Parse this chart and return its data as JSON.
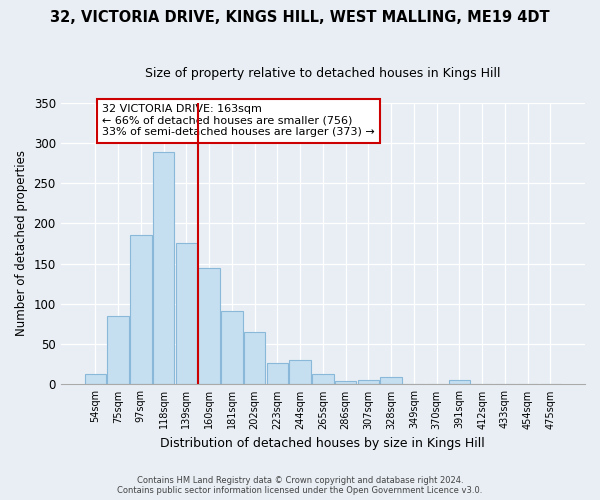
{
  "title": "32, VICTORIA DRIVE, KINGS HILL, WEST MALLING, ME19 4DT",
  "subtitle": "Size of property relative to detached houses in Kings Hill",
  "xlabel": "Distribution of detached houses by size in Kings Hill",
  "ylabel": "Number of detached properties",
  "bar_labels": [
    "54sqm",
    "75sqm",
    "97sqm",
    "118sqm",
    "139sqm",
    "160sqm",
    "181sqm",
    "202sqm",
    "223sqm",
    "244sqm",
    "265sqm",
    "286sqm",
    "307sqm",
    "328sqm",
    "349sqm",
    "370sqm",
    "391sqm",
    "412sqm",
    "433sqm",
    "454sqm",
    "475sqm"
  ],
  "bar_values": [
    13,
    85,
    185,
    289,
    175,
    145,
    91,
    65,
    27,
    30,
    13,
    4,
    6,
    9,
    0,
    0,
    5,
    0,
    0,
    0,
    0
  ],
  "bar_color": "#c5dff0",
  "bar_edge_color": "#8ab8d8",
  "vline_x": 4.5,
  "vline_color": "#cc0000",
  "annotation_title": "32 VICTORIA DRIVE: 163sqm",
  "annotation_line1": "← 66% of detached houses are smaller (756)",
  "annotation_line2": "33% of semi-detached houses are larger (373) →",
  "annotation_box_color": "#ffffff",
  "annotation_box_edge": "#cc0000",
  "footnote1": "Contains HM Land Registry data © Crown copyright and database right 2024.",
  "footnote2": "Contains public sector information licensed under the Open Government Licence v3.0.",
  "ylim": [
    0,
    350
  ],
  "background_color": "#e8eef4"
}
